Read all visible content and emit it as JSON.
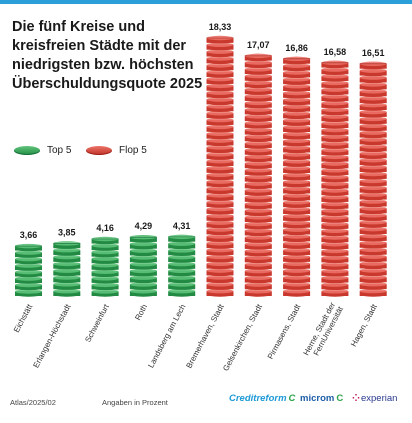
{
  "title": "Die fünf Kreise und kreisfreien Städte mit der niedrigsten bzw. höchsten Überschuldungsquote 2025",
  "legend": {
    "top": "Top 5",
    "flop": "Flop 5"
  },
  "footer": {
    "source": "Atlas/2025/02",
    "unit_note": "Angaben in Prozent"
  },
  "logos": {
    "creditreform": "Creditreform",
    "microm": "microm",
    "experian": "experian"
  },
  "colors": {
    "top": "#2e9a4e",
    "flop": "#d9483c",
    "accent_bar": "#2b9fd8"
  },
  "chart_data": {
    "type": "bar",
    "categories": [
      "Eichstätt",
      "Erlangen-Höchstadt",
      "Schweinfurt",
      "Roth",
      "Landsberg am Lech",
      "Bremerhaven, Stadt",
      "Gelsenkirchen, Stadt",
      "Pirmasens, Stadt",
      "Herne, Stadt der FernUniversität",
      "Hagen, Stadt"
    ],
    "values": [
      3.66,
      3.85,
      4.16,
      4.29,
      4.31,
      18.33,
      17.07,
      16.86,
      16.58,
      16.51
    ],
    "value_labels": [
      "3,66",
      "3,85",
      "4,16",
      "4,29",
      "4,31",
      "18,33",
      "17,07",
      "16,86",
      "16,58",
      "16,51"
    ],
    "groups": [
      "Top 5",
      "Top 5",
      "Top 5",
      "Top 5",
      "Top 5",
      "Flop 5",
      "Flop 5",
      "Flop 5",
      "Flop 5",
      "Flop 5"
    ],
    "ylim": [
      0,
      18.33
    ],
    "grid": false,
    "legend_position": "left",
    "title": "Die fünf Kreise und kreisfreien Städte mit der niedrigsten bzw. höchsten Überschuldungsquote 2025",
    "xlabel": "",
    "ylabel": ""
  }
}
